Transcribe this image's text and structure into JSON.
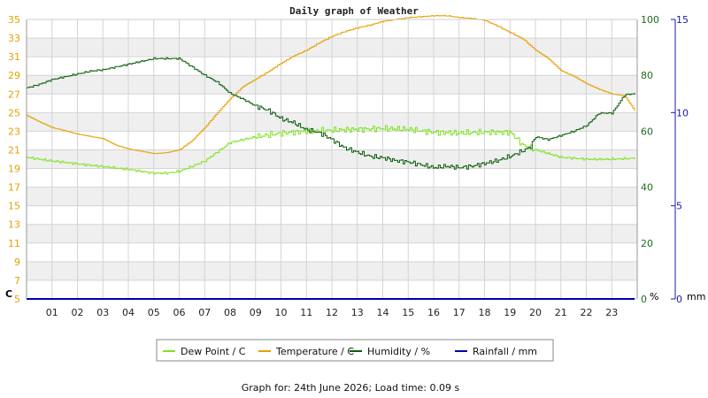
{
  "chart_data": {
    "type": "line",
    "title": "Daily graph of Weather",
    "footer": "Graph for: 24th June 2026; Load time: 0.09 s",
    "x_ticks": [
      "01",
      "02",
      "03",
      "04",
      "05",
      "06",
      "07",
      "08",
      "09",
      "10",
      "11",
      "12",
      "13",
      "14",
      "15",
      "16",
      "17",
      "18",
      "19",
      "20",
      "21",
      "22",
      "23"
    ],
    "x_range": [
      0,
      24
    ],
    "left_axis": {
      "unit": "C",
      "range": [
        5,
        35
      ],
      "ticks": [
        "5",
        "7",
        "9",
        "11",
        "13",
        "15",
        "17",
        "19",
        "21",
        "23",
        "25",
        "27",
        "29",
        "31",
        "33",
        "35"
      ],
      "color": "#e8a000"
    },
    "right_axis_1": {
      "unit": "%",
      "range": [
        0,
        100
      ],
      "ticks": [
        "0",
        "20",
        "40",
        "60",
        "80",
        "100"
      ],
      "color": "#1f6b1f"
    },
    "right_axis_2": {
      "unit": "mm",
      "range": [
        0,
        15
      ],
      "ticks": [
        "0",
        "5",
        "10",
        "15"
      ],
      "color": "#1a1aa0"
    },
    "grid": true,
    "legend_position": "bottom",
    "series": [
      {
        "name": "Dew Point / C",
        "axis": "left",
        "color": "#7ee320",
        "x": [
          0,
          1,
          2,
          3,
          4,
          5,
          5.5,
          6,
          7,
          8,
          9,
          10,
          11,
          12,
          13,
          14,
          15,
          16,
          17,
          18,
          19,
          19.5,
          20,
          21,
          22,
          23,
          23.9
        ],
        "y": [
          20.2,
          19.8,
          19.5,
          19.2,
          18.9,
          18.5,
          18.5,
          18.7,
          19.8,
          21.8,
          22.4,
          22.8,
          23.0,
          23.1,
          23.2,
          23.3,
          23.2,
          22.9,
          22.8,
          22.9,
          22.9,
          21.5,
          21.0,
          20.2,
          20.0,
          20.0,
          20.1
        ]
      },
      {
        "name": "Temperature / C",
        "axis": "left",
        "color": "#e8a000",
        "x": [
          0,
          0.5,
          1,
          2,
          3,
          3.5,
          4,
          5,
          5.5,
          6,
          6.5,
          7,
          7.5,
          8,
          8.5,
          9,
          9.5,
          10,
          10.5,
          11,
          11.5,
          12,
          12.5,
          13,
          13.5,
          14,
          14.5,
          15,
          15.5,
          16,
          16.5,
          17,
          17.5,
          18,
          18.5,
          19,
          19.5,
          20,
          20.5,
          21,
          21.5,
          22,
          22.5,
          23,
          23.5,
          23.9
        ],
        "y": [
          24.7,
          24.0,
          23.4,
          22.7,
          22.2,
          21.5,
          21.1,
          20.6,
          20.7,
          21.0,
          22.0,
          23.4,
          25.0,
          26.5,
          27.8,
          28.6,
          29.4,
          30.3,
          31.1,
          31.7,
          32.5,
          33.2,
          33.7,
          34.1,
          34.4,
          34.8,
          35.0,
          35.2,
          35.3,
          35.4,
          35.4,
          35.2,
          35.1,
          34.9,
          34.3,
          33.6,
          32.9,
          31.7,
          30.8,
          29.5,
          28.9,
          28.1,
          27.5,
          27.0,
          26.8,
          25.2
        ]
      },
      {
        "name": "Humidity / %",
        "axis": "right1",
        "color": "#0a5c0a",
        "x": [
          0,
          0.5,
          1,
          1.5,
          2,
          2.5,
          3,
          3.5,
          4,
          4.5,
          5,
          5.5,
          6,
          6.5,
          7,
          7.5,
          8,
          8.5,
          9,
          9.5,
          10,
          10.5,
          11,
          11.5,
          12,
          12.5,
          13,
          13.5,
          14,
          14.5,
          15,
          15.5,
          16,
          16.5,
          17,
          17.5,
          18,
          18.5,
          19,
          19.5,
          19.8,
          20,
          20.5,
          21,
          21.5,
          22,
          22.5,
          23,
          23.5,
          23.9
        ],
        "y": [
          75.5,
          76.8,
          78.5,
          79.5,
          80.5,
          81.5,
          82.0,
          83.0,
          84.0,
          85.0,
          86.0,
          86.0,
          86.0,
          83.0,
          80.0,
          77.5,
          73.5,
          71.5,
          69.0,
          67.5,
          64.5,
          63.0,
          60.5,
          59.5,
          57.0,
          54.0,
          52.5,
          51.0,
          50.5,
          49.5,
          49.0,
          48.0,
          47.0,
          47.5,
          47.0,
          47.5,
          48.5,
          49.5,
          51.0,
          53.0,
          54.5,
          58.0,
          57.0,
          58.5,
          60.0,
          62.0,
          66.5,
          66.5,
          73.0,
          73.5
        ]
      },
      {
        "name": "Rainfall / mm",
        "axis": "right2",
        "color": "#0000aa",
        "x": [
          0,
          23.9
        ],
        "y": [
          0,
          0
        ]
      }
    ]
  }
}
